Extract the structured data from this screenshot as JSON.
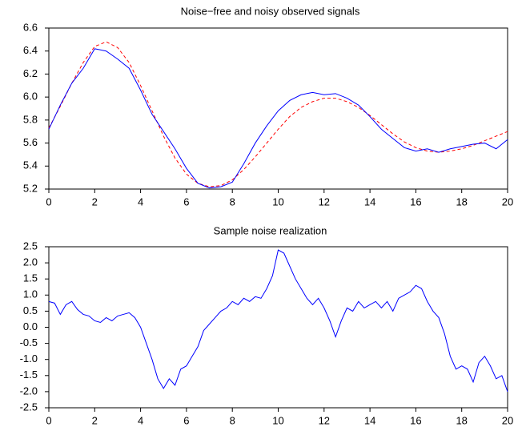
{
  "chart_data": [
    {
      "type": "line",
      "title": "Noise−free and noisy observed signals",
      "x": [
        0,
        0.5,
        1,
        1.5,
        2,
        2.5,
        3,
        3.5,
        4,
        4.5,
        5,
        5.5,
        6,
        6.5,
        7,
        7.5,
        8,
        8.5,
        9,
        9.5,
        10,
        10.5,
        11,
        11.5,
        12,
        12.5,
        13,
        13.5,
        14,
        14.5,
        15,
        15.5,
        16,
        16.5,
        17,
        17.5,
        18,
        18.5,
        19,
        19.5,
        20
      ],
      "series": [
        {
          "color": "#0000ff",
          "linestyle": "solid",
          "values": [
            5.72,
            5.93,
            6.12,
            6.25,
            6.42,
            6.4,
            6.33,
            6.25,
            6.06,
            5.85,
            5.7,
            5.55,
            5.38,
            5.25,
            5.21,
            5.22,
            5.26,
            5.42,
            5.6,
            5.75,
            5.88,
            5.97,
            6.02,
            6.04,
            6.02,
            6.03,
            5.99,
            5.93,
            5.83,
            5.72,
            5.64,
            5.56,
            5.53,
            5.55,
            5.52,
            5.55,
            5.57,
            5.59,
            5.6,
            5.55,
            5.63
          ]
        },
        {
          "color": "#ff0000",
          "linestyle": "dashed",
          "values": [
            5.73,
            5.92,
            6.12,
            6.3,
            6.44,
            6.48,
            6.43,
            6.3,
            6.1,
            5.88,
            5.66,
            5.47,
            5.33,
            5.25,
            5.22,
            5.23,
            5.28,
            5.37,
            5.48,
            5.6,
            5.72,
            5.83,
            5.91,
            5.96,
            5.99,
            5.99,
            5.96,
            5.91,
            5.84,
            5.76,
            5.68,
            5.61,
            5.56,
            5.53,
            5.52,
            5.53,
            5.55,
            5.58,
            5.62,
            5.66,
            5.7
          ]
        }
      ],
      "xlim": [
        0,
        20
      ],
      "xticks": [
        0,
        2,
        4,
        6,
        8,
        10,
        12,
        14,
        16,
        18,
        20
      ],
      "ylim": [
        5.2,
        6.6
      ],
      "yticks": [
        5.2,
        5.4,
        5.6,
        5.8,
        {
          "value": 6,
          "label": "6.0"
        },
        6.2,
        6.4,
        6.6
      ]
    },
    {
      "type": "line",
      "title": "Sample noise realization",
      "x": [
        0,
        0.25,
        0.5,
        0.75,
        1,
        1.25,
        1.5,
        1.75,
        2,
        2.25,
        2.5,
        2.75,
        3,
        3.25,
        3.5,
        3.75,
        4,
        4.25,
        4.5,
        4.75,
        5,
        5.25,
        5.5,
        5.75,
        6,
        6.25,
        6.5,
        6.75,
        7,
        7.25,
        7.5,
        7.75,
        8,
        8.25,
        8.5,
        8.75,
        9,
        9.25,
        9.5,
        9.75,
        10,
        10.25,
        10.5,
        10.75,
        11,
        11.25,
        11.5,
        11.75,
        12,
        12.25,
        12.5,
        12.75,
        13,
        13.25,
        13.5,
        13.75,
        14,
        14.25,
        14.5,
        14.75,
        15,
        15.25,
        15.5,
        15.75,
        16,
        16.25,
        16.5,
        16.75,
        17,
        17.25,
        17.5,
        17.75,
        18,
        18.25,
        18.5,
        18.75,
        19,
        19.25,
        19.5,
        19.75,
        20
      ],
      "series": [
        {
          "color": "#0000ff",
          "linestyle": "solid",
          "values": [
            0.8,
            0.75,
            0.4,
            0.7,
            0.8,
            0.55,
            0.4,
            0.35,
            0.2,
            0.15,
            0.3,
            0.2,
            0.35,
            0.4,
            0.45,
            0.3,
            0,
            -0.5,
            -1,
            -1.6,
            -1.9,
            -1.6,
            -1.8,
            -1.3,
            -1.2,
            -0.9,
            -0.6,
            -0.1,
            0.1,
            0.3,
            0.5,
            0.6,
            0.8,
            0.7,
            0.9,
            0.8,
            0.95,
            0.9,
            1.2,
            1.6,
            2.4,
            2.3,
            1.9,
            1.5,
            1.2,
            0.9,
            0.7,
            0.9,
            0.6,
            0.2,
            -0.3,
            0.2,
            0.6,
            0.5,
            0.8,
            0.6,
            0.7,
            0.8,
            0.6,
            0.8,
            0.5,
            0.9,
            1,
            1.1,
            1.3,
            1.2,
            0.8,
            0.5,
            0.3,
            -0.2,
            -0.9,
            -1.3,
            -1.2,
            -1.3,
            -1.7,
            -1.1,
            -0.9,
            -1.2,
            -1.6,
            -1.5,
            -2
          ]
        }
      ],
      "xlim": [
        0,
        20
      ],
      "xticks": [
        0,
        2,
        4,
        6,
        8,
        10,
        12,
        14,
        16,
        18,
        20
      ],
      "ylim": [
        -2.5,
        2.5
      ],
      "yticks": [
        2.5,
        {
          "value": 2,
          "label": "2.0"
        },
        1.5,
        {
          "value": 1,
          "label": "1.0"
        },
        0.5,
        {
          "value": 0,
          "label": "0.0"
        },
        -0.5,
        {
          "value": -1,
          "label": "-1.0"
        },
        -1.5,
        {
          "value": -2,
          "label": "-2.0"
        },
        -2.5
      ]
    }
  ]
}
